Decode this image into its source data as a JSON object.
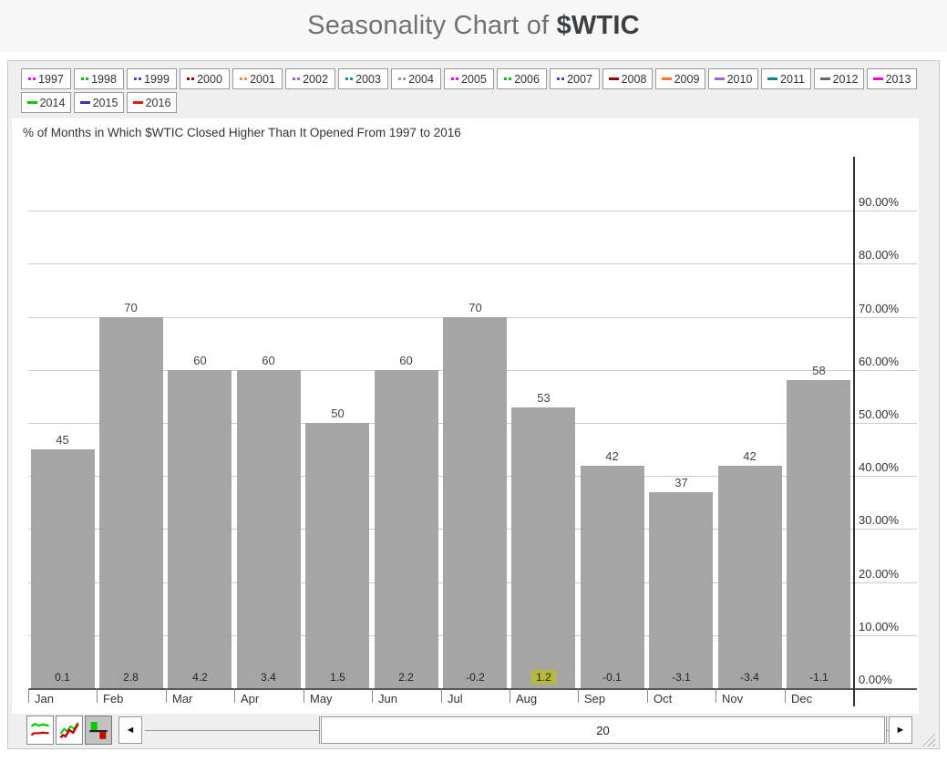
{
  "header": {
    "title_prefix": "Seasonality Chart of",
    "title_symbol": "$WTIC"
  },
  "legend": {
    "years": [
      {
        "label": "1997",
        "color": "#ff00ff",
        "style": "dots"
      },
      {
        "label": "1998",
        "color": "#00cc00",
        "style": "dots"
      },
      {
        "label": "1999",
        "color": "#4444cc",
        "style": "dots"
      },
      {
        "label": "2000",
        "color": "#990000",
        "style": "dots"
      },
      {
        "label": "2001",
        "color": "#ff8833",
        "style": "dots"
      },
      {
        "label": "2002",
        "color": "#9966cc",
        "style": "dots"
      },
      {
        "label": "2003",
        "color": "#009999",
        "style": "dots"
      },
      {
        "label": "2004",
        "color": "#999999",
        "style": "dots"
      },
      {
        "label": "2005",
        "color": "#ff00ff",
        "style": "dots"
      },
      {
        "label": "2006",
        "color": "#00cc00",
        "style": "dots"
      },
      {
        "label": "2007",
        "color": "#4444cc",
        "style": "dots"
      },
      {
        "label": "2008",
        "color": "#990000",
        "style": "dash"
      },
      {
        "label": "2009",
        "color": "#ff7722",
        "style": "dash"
      },
      {
        "label": "2010",
        "color": "#9966dd",
        "style": "dash"
      },
      {
        "label": "2011",
        "color": "#008888",
        "style": "dash"
      },
      {
        "label": "2012",
        "color": "#666666",
        "style": "dash"
      },
      {
        "label": "2013",
        "color": "#ff00cc",
        "style": "dash"
      },
      {
        "label": "2014",
        "color": "#00cc00",
        "style": "dash"
      },
      {
        "label": "2015",
        "color": "#3333bb",
        "style": "dash"
      },
      {
        "label": "2016",
        "color": "#ee1111",
        "style": "dash"
      }
    ]
  },
  "chart_data": {
    "type": "bar",
    "title": "% of Months in Which $WTIC Closed Higher Than It Opened From 1997 to 2016",
    "categories": [
      "Jan",
      "Feb",
      "Mar",
      "Apr",
      "May",
      "Jun",
      "Jul",
      "Aug",
      "Sep",
      "Oct",
      "Nov",
      "Dec"
    ],
    "values": [
      45,
      70,
      60,
      60,
      50,
      60,
      70,
      53,
      42,
      37,
      42,
      58
    ],
    "footer_values": [
      "0.1",
      "2.8",
      "4.2",
      "3.4",
      "1.5",
      "2.2",
      "-0.2",
      "1.2",
      "-0.1",
      "-3.1",
      "-3.4",
      "-1.1"
    ],
    "highlighted_footer_index": 7,
    "yticks": [
      "0.00%",
      "10.00%",
      "20.00%",
      "30.00%",
      "40.00%",
      "50.00%",
      "60.00%",
      "70.00%",
      "80.00%",
      "90.00%"
    ],
    "ylim": [
      0,
      100
    ],
    "grid": true,
    "bar_color": "#a5a5a5",
    "footer_highlight_color": "#b8b83b",
    "legend_position": "top"
  },
  "toolbar": {
    "icons": [
      "separate-lines-chart-icon",
      "overlay-lines-chart-icon",
      "bar-chart-icon"
    ],
    "selected_icon": "bar-chart-icon",
    "left_arrow": "◄",
    "right_arrow": "►",
    "scroll_value": "20"
  }
}
